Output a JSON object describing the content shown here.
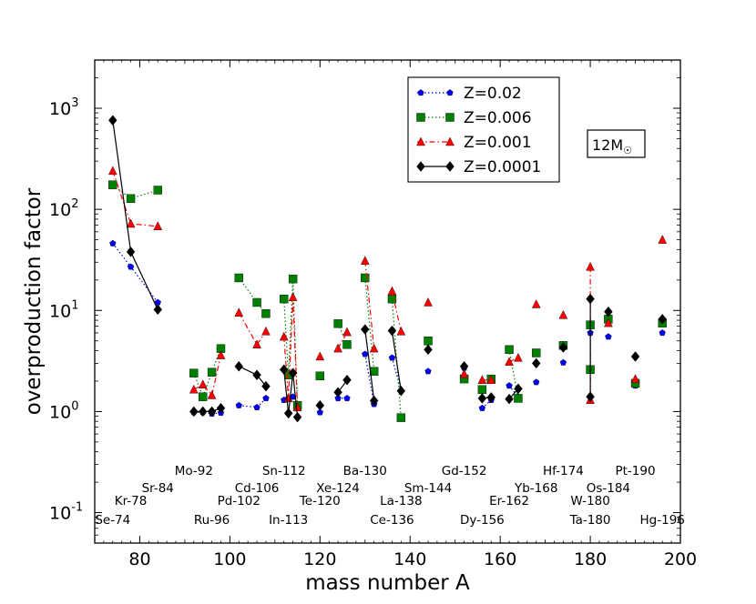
{
  "chart_data": {
    "type": "scatter",
    "title": "",
    "xlabel": "mass number A",
    "ylabel": "overproduction factor",
    "xlim": [
      70,
      200
    ],
    "ylim": [
      0.05,
      3000
    ],
    "yscale": "log",
    "x_ticks": [
      80,
      100,
      120,
      140,
      160,
      180,
      200
    ],
    "x_tick_labels": [
      "80",
      "100",
      "120",
      "140",
      "160",
      "180",
      "200"
    ],
    "y_ticks": [
      0.1,
      1,
      10,
      100,
      1000
    ],
    "y_tick_labels": [
      {
        "base": "10",
        "exp": "-1"
      },
      {
        "base": "10",
        "exp": "0"
      },
      {
        "base": "10",
        "exp": "1"
      },
      {
        "base": "10",
        "exp": "2"
      },
      {
        "base": "10",
        "exp": "3"
      }
    ],
    "grid": false,
    "legend_position": "top-center",
    "annotation": {
      "text": "12M",
      "subscript": "☉"
    },
    "colors": {
      "z002": "#0000ff",
      "z0006": "#008000",
      "z0001": "#ff0000",
      "z00001": "#000000"
    },
    "isotopes": [
      {
        "label": "Se-74",
        "A": 74,
        "row": 2
      },
      {
        "label": "Kr-78",
        "A": 78,
        "row": 1
      },
      {
        "label": "Sr-84",
        "A": 84,
        "row": 0
      },
      {
        "label": "Mo-92",
        "A": 92,
        "row": -1
      },
      {
        "label": "Ru-96",
        "A": 96,
        "row": 2
      },
      {
        "label": "Pd-102",
        "A": 102,
        "row": 1
      },
      {
        "label": "Cd-106",
        "A": 106,
        "row": 0
      },
      {
        "label": "Sn-112",
        "A": 112,
        "row": -1
      },
      {
        "label": "In-113",
        "A": 113,
        "row": 2
      },
      {
        "label": "Te-120",
        "A": 120,
        "row": 1
      },
      {
        "label": "Xe-124",
        "A": 124,
        "row": 0
      },
      {
        "label": "Ba-130",
        "A": 130,
        "row": -1
      },
      {
        "label": "Ce-136",
        "A": 136,
        "row": 2
      },
      {
        "label": "La-138",
        "A": 138,
        "row": 1
      },
      {
        "label": "Sm-144",
        "A": 144,
        "row": 0
      },
      {
        "label": "Gd-152",
        "A": 152,
        "row": -1
      },
      {
        "label": "Dy-156",
        "A": 156,
        "row": 2
      },
      {
        "label": "Er-162",
        "A": 162,
        "row": 1
      },
      {
        "label": "Yb-168",
        "A": 168,
        "row": 0
      },
      {
        "label": "Hf-174",
        "A": 174,
        "row": -1
      },
      {
        "label": "Ta-180",
        "A": 180,
        "row": 2
      },
      {
        "label": "W-180",
        "A": 180,
        "row": 1
      },
      {
        "label": "Os-184",
        "A": 184,
        "row": 0
      },
      {
        "label": "Pt-190",
        "A": 190,
        "row": -1
      },
      {
        "label": "Hg-196",
        "A": 196,
        "row": 2
      }
    ],
    "series": [
      {
        "name": "Z=0.02",
        "marker": "pentagon",
        "color": "#0000ff",
        "line": "dotted",
        "segments": [
          [
            [
              74,
              46
            ],
            [
              78,
              27
            ],
            [
              84,
              12
            ]
          ],
          [
            [
              92,
              0.98
            ],
            [
              94,
              0.98
            ],
            [
              96,
              0.95
            ],
            [
              98,
              0.97
            ]
          ],
          [
            [
              102,
              1.15
            ],
            [
              106,
              1.1
            ],
            [
              108,
              1.35
            ]
          ],
          [
            [
              112,
              1.3
            ],
            [
              113,
              1.35
            ],
            [
              114,
              1.4
            ],
            [
              115,
              1.15
            ]
          ],
          [
            [
              120,
              0.98
            ]
          ],
          [
            [
              124,
              1.35
            ],
            [
              126,
              1.35
            ]
          ],
          [
            [
              130,
              3.7
            ],
            [
              132,
              1.18
            ]
          ],
          [
            [
              136,
              3.4
            ],
            [
              138,
              1.6
            ]
          ],
          [
            [
              144,
              2.5
            ]
          ],
          [
            [
              152,
              2.7
            ]
          ],
          [
            [
              156,
              1.08
            ],
            [
              158,
              1.3
            ]
          ],
          [
            [
              162,
              1.8
            ],
            [
              164,
              1.4
            ]
          ],
          [
            [
              168,
              1.95
            ]
          ],
          [
            [
              174,
              3.05
            ]
          ],
          [
            [
              180,
              6.0
            ],
            [
              180,
              2.6
            ]
          ],
          [
            [
              184,
              5.5
            ]
          ],
          [
            [
              190,
              1.8
            ]
          ],
          [
            [
              196,
              6.0
            ]
          ]
        ]
      },
      {
        "name": "Z=0.006",
        "marker": "square",
        "color": "#008000",
        "line": "dotted",
        "segments": [
          [
            [
              74,
              175
            ],
            [
              78,
              128
            ],
            [
              84,
              155
            ]
          ],
          [
            [
              92,
              2.4
            ],
            [
              94,
              1.4
            ],
            [
              96,
              2.45
            ],
            [
              98,
              4.2
            ]
          ],
          [
            [
              102,
              21
            ],
            [
              106,
              12
            ],
            [
              108,
              9.3
            ]
          ],
          [
            [
              112,
              13
            ],
            [
              113,
              2.3
            ],
            [
              114,
              20.5
            ],
            [
              115,
              1.15
            ]
          ],
          [
            [
              120,
              2.25
            ]
          ],
          [
            [
              124,
              7.4
            ],
            [
              126,
              4.6
            ]
          ],
          [
            [
              130,
              21
            ],
            [
              132,
              2.5
            ]
          ],
          [
            [
              136,
              13
            ],
            [
              138,
              0.87
            ]
          ],
          [
            [
              144,
              5.0
            ]
          ],
          [
            [
              152,
              2.1
            ]
          ],
          [
            [
              156,
              1.65
            ],
            [
              158,
              2.1
            ]
          ],
          [
            [
              162,
              4.1
            ],
            [
              164,
              1.35
            ]
          ],
          [
            [
              168,
              3.8
            ]
          ],
          [
            [
              174,
              4.5
            ]
          ],
          [
            [
              180,
              7.2
            ],
            [
              180,
              2.6
            ]
          ],
          [
            [
              184,
              8.2
            ]
          ],
          [
            [
              190,
              1.9
            ]
          ],
          [
            [
              196,
              7.5
            ]
          ]
        ]
      },
      {
        "name": "Z=0.001",
        "marker": "triangle",
        "color": "#ff0000",
        "line": "dashdot",
        "segments": [
          [
            [
              74,
              240
            ],
            [
              78,
              72
            ],
            [
              84,
              68
            ]
          ],
          [
            [
              92,
              1.65
            ],
            [
              94,
              1.85
            ],
            [
              96,
              1.45
            ],
            [
              98,
              3.6
            ]
          ],
          [
            [
              102,
              9.5
            ],
            [
              106,
              4.6
            ],
            [
              108,
              6.2
            ]
          ],
          [
            [
              112,
              5.5
            ],
            [
              113,
              1.35
            ],
            [
              114,
              13.5
            ],
            [
              115,
              1.1
            ]
          ],
          [
            [
              120,
              3.5
            ]
          ],
          [
            [
              124,
              4.2
            ],
            [
              126,
              6.1
            ]
          ],
          [
            [
              130,
              31
            ],
            [
              132,
              4.2
            ]
          ],
          [
            [
              136,
              15.5
            ],
            [
              138,
              6.2
            ]
          ],
          [
            [
              144,
              12
            ]
          ],
          [
            [
              152,
              2.35
            ]
          ],
          [
            [
              156,
              2.05
            ],
            [
              158,
              2.05
            ]
          ],
          [
            [
              162,
              3.1
            ],
            [
              164,
              3.4
            ]
          ],
          [
            [
              168,
              11.5
            ]
          ],
          [
            [
              174,
              9.0
            ]
          ],
          [
            [
              180,
              27
            ],
            [
              180,
              1.3
            ]
          ],
          [
            [
              184,
              7.5
            ]
          ],
          [
            [
              190,
              2.1
            ]
          ],
          [
            [
              196,
              50
            ]
          ]
        ]
      },
      {
        "name": "Z=0.0001",
        "marker": "diamond",
        "color": "#000000",
        "line": "solid",
        "segments": [
          [
            [
              74,
              760
            ],
            [
              78,
              38
            ],
            [
              84,
              10.2
            ]
          ],
          [
            [
              92,
              1.0
            ],
            [
              94,
              1.0
            ],
            [
              96,
              1.0
            ],
            [
              98,
              1.08
            ]
          ],
          [
            [
              102,
              2.8
            ],
            [
              106,
              2.3
            ],
            [
              108,
              1.78
            ]
          ],
          [
            [
              112,
              2.6
            ],
            [
              113,
              0.96
            ],
            [
              114,
              2.4
            ],
            [
              115,
              0.88
            ]
          ],
          [
            [
              120,
              1.15
            ]
          ],
          [
            [
              124,
              1.55
            ],
            [
              126,
              2.05
            ]
          ],
          [
            [
              130,
              6.5
            ],
            [
              132,
              1.28
            ]
          ],
          [
            [
              136,
              6.3
            ],
            [
              138,
              1.6
            ]
          ],
          [
            [
              144,
              4.1
            ]
          ],
          [
            [
              152,
              2.8
            ]
          ],
          [
            [
              156,
              1.35
            ],
            [
              158,
              1.38
            ]
          ],
          [
            [
              162,
              1.33
            ],
            [
              164,
              1.68
            ]
          ],
          [
            [
              168,
              3.0
            ]
          ],
          [
            [
              174,
              4.3
            ]
          ],
          [
            [
              180,
              13
            ],
            [
              180,
              1.4
            ]
          ],
          [
            [
              184,
              9.7
            ]
          ],
          [
            [
              190,
              3.5
            ]
          ],
          [
            [
              196,
              8.2
            ]
          ]
        ]
      }
    ]
  }
}
